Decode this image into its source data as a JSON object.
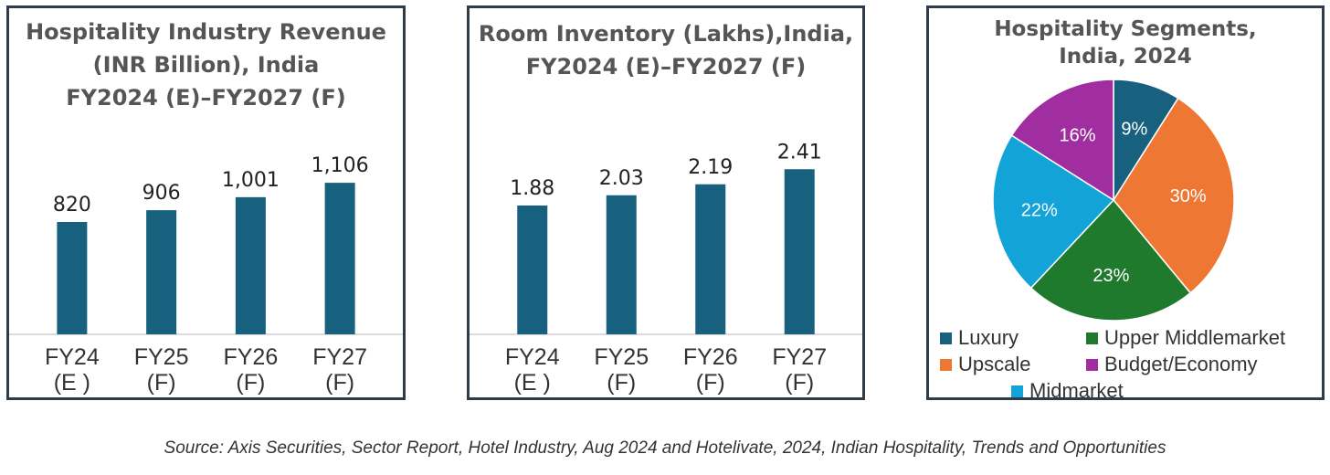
{
  "chart_data": [
    {
      "type": "bar",
      "title_lines": [
        "Hospitality Industry Revenue",
        "(INR Billion), India",
        "FY2024 (E)–FY2027 (F)"
      ],
      "categories": [
        [
          "FY24",
          "(E )"
        ],
        [
          "FY25",
          "(F)"
        ],
        [
          "FY26",
          "(F)"
        ],
        [
          "FY27",
          "(F)"
        ]
      ],
      "values": [
        820,
        906,
        1001,
        1106
      ],
      "value_labels": [
        "820",
        "906",
        "1,001",
        "1,106"
      ],
      "ylim": [
        0,
        1500
      ],
      "color": "#17607e",
      "grid": false
    },
    {
      "type": "bar",
      "title_lines": [
        "Room Inventory (Lakhs),India,",
        "FY2024 (E)–FY2027 (F)"
      ],
      "categories": [
        [
          "FY24",
          "(E )"
        ],
        [
          "FY25",
          "(F)"
        ],
        [
          "FY26",
          "(F)"
        ],
        [
          "FY27",
          "(F)"
        ]
      ],
      "values": [
        1.88,
        2.03,
        2.19,
        2.41
      ],
      "value_labels": [
        "1.88",
        "2.03",
        "2.19",
        "2.41"
      ],
      "ylim": [
        0,
        3.0
      ],
      "color": "#17607e",
      "grid": false
    },
    {
      "type": "pie",
      "title_lines": [
        "Hospitality Segments,",
        "India, 2024"
      ],
      "slices": [
        {
          "name": "Luxury",
          "value": 9,
          "label": "9%",
          "color": "#17607e"
        },
        {
          "name": "Upscale",
          "value": 30,
          "label": "30%",
          "color": "#ee7733"
        },
        {
          "name": "Upper Middlemarket",
          "value": 23,
          "label": "23%",
          "color": "#1f7a2e"
        },
        {
          "name": "Midmarket",
          "value": 22,
          "label": "22%",
          "color": "#12a3d8"
        },
        {
          "name": "Budget/Economy",
          "value": 16,
          "label": "16%",
          "color": "#a12ea1"
        }
      ],
      "legend_position": "bottom"
    }
  ],
  "source": "Source: Axis Securities, Sector Report, Hotel Industry, Aug 2024 and Hotelivate, 2024, Indian Hospitality, Trends and Opportunities"
}
